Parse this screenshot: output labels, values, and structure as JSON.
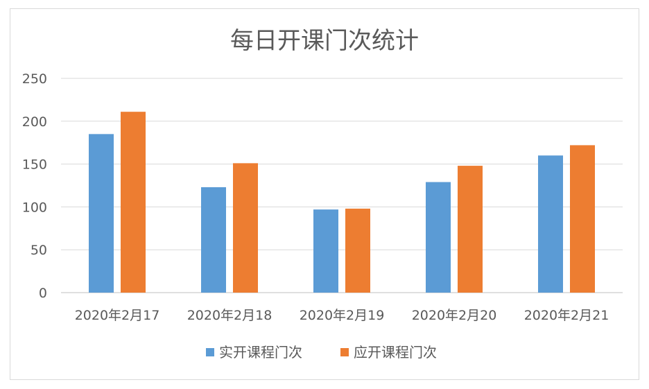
{
  "chart_data": {
    "type": "bar",
    "title": "每日开课门次统计",
    "xlabel": "",
    "ylabel": "",
    "categories": [
      "2020年2月17",
      "2020年2月18",
      "2020年2月19",
      "2020年2月20",
      "2020年2月21"
    ],
    "series": [
      {
        "name": "实开课程门次",
        "values": [
          185,
          123,
          97,
          129,
          160
        ],
        "color": "#5b9bd5"
      },
      {
        "name": "应开课程门次",
        "values": [
          211,
          151,
          98,
          148,
          172
        ],
        "color": "#ed7d31"
      }
    ],
    "ylim": [
      0,
      250
    ],
    "yticks": [
      0,
      50,
      100,
      150,
      200,
      250
    ],
    "grid": true,
    "legend": "bottom"
  }
}
